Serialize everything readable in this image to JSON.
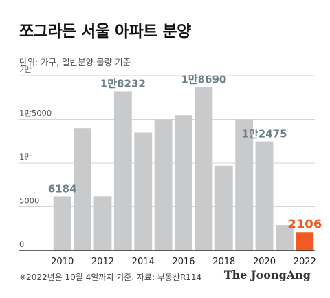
{
  "title": "쪼그라든 서울 아파트 분양",
  "unit_note": "단위: 가구, 일반분양 물량 기준",
  "footnote": "※2022년은 10월 4일까지 기준.  자료: 부동산R114",
  "brand": "The JoongAng",
  "colors": {
    "bar": "#c8cacc",
    "highlight": "#f15a22",
    "label": "#6b7f87",
    "axis": "#333333",
    "grid": "#d5d5d5"
  },
  "chart_data": {
    "type": "bar",
    "categories": [
      "2010",
      "2011",
      "2012",
      "2013",
      "2014",
      "2015",
      "2016",
      "2017",
      "2018",
      "2019",
      "2020",
      "2021",
      "2022"
    ],
    "values": [
      6184,
      14000,
      6200,
      18232,
      13500,
      15000,
      15500,
      18690,
      9700,
      15000,
      12475,
      2900,
      2106
    ],
    "highlight_index": 12,
    "ylim": [
      0,
      20000
    ],
    "yticks": [
      {
        "value": 0,
        "label": "0"
      },
      {
        "value": 5000,
        "label": "5000"
      },
      {
        "value": 10000,
        "label": "1만"
      },
      {
        "value": 15000,
        "label": "1만5000"
      },
      {
        "value": 20000,
        "label": "2만"
      }
    ],
    "xtick_labels": [
      "2010",
      "",
      "2012",
      "",
      "2014",
      "",
      "2016",
      "",
      "2018",
      "",
      "2020",
      "",
      "2022"
    ],
    "data_labels": [
      {
        "index": 0,
        "text": "6184"
      },
      {
        "index": 3,
        "text": "1만8232"
      },
      {
        "index": 7,
        "text": "1만8690"
      },
      {
        "index": 10,
        "text": "1만2475"
      },
      {
        "index": 12,
        "text": "2106"
      }
    ],
    "grid": true
  }
}
